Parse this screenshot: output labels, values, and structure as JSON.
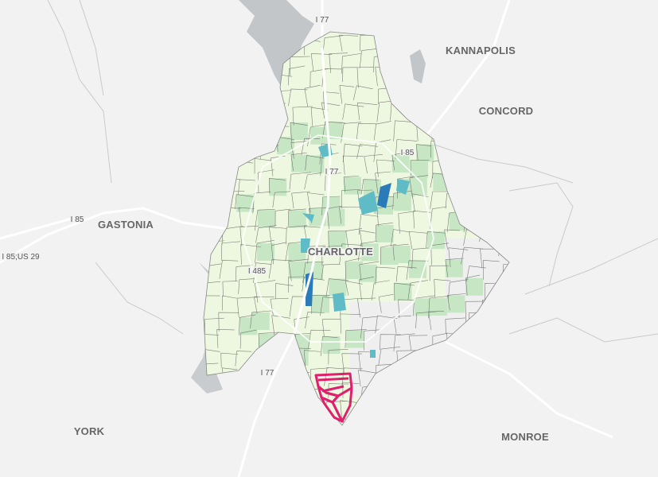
{
  "map": {
    "places": {
      "charlotte": "CHARLOTTE",
      "kannapolis": "KANNAPOLIS",
      "concord": "CONCORD",
      "gastonia": "GASTONIA",
      "york": "YORK",
      "monroe": "MONROE"
    },
    "roads": {
      "i77_north": "I 77",
      "i77_center": "I 77",
      "i77_south": "I 77",
      "i85_east": "I 85",
      "i85_west": "I 85",
      "i85_us29": "I 85;US 29",
      "i485": "I 485"
    },
    "colors": {
      "background": "#f2f2f2",
      "water": "#c3c6c9",
      "tract_low": "#eef8e0",
      "tract_mid": "#c6e6c4",
      "tract_high": "#5fbcc6",
      "tract_max": "#2b7bb8",
      "selected_outline": "#e0206e"
    }
  }
}
